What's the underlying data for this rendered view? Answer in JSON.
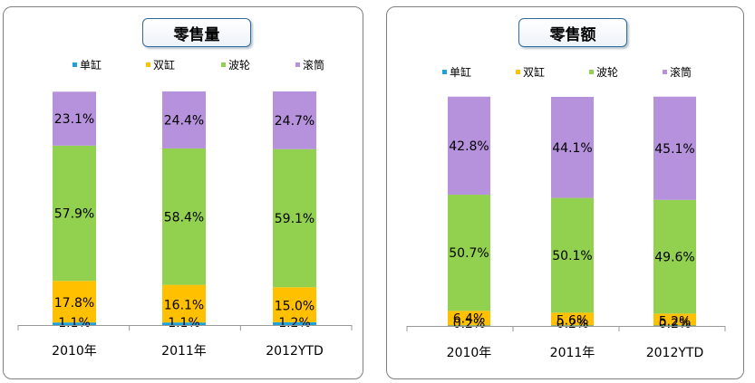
{
  "colors": {
    "single": "#1fa2d8",
    "double": "#ffc000",
    "wave": "#92d050",
    "roller": "#b592db"
  },
  "legend": [
    "单缸",
    "双缸",
    "波轮",
    "滚筒"
  ],
  "chart_data": [
    {
      "type": "bar",
      "stacked": true,
      "title": "零售量",
      "categories": [
        "2010年",
        "2011年",
        "2012YTD"
      ],
      "series": [
        {
          "name": "单缸",
          "values": [
            1.1,
            1.1,
            1.2
          ],
          "labels": [
            "1.1%",
            "1.1%",
            "1.2%"
          ]
        },
        {
          "name": "双缸",
          "values": [
            17.8,
            16.1,
            15.0
          ],
          "labels": [
            "17.8%",
            "16.1%",
            "15.0%"
          ]
        },
        {
          "name": "波轮",
          "values": [
            57.9,
            58.4,
            59.1
          ],
          "labels": [
            "57.9%",
            "58.4%",
            "59.1%"
          ]
        },
        {
          "name": "滚筒",
          "values": [
            23.1,
            24.4,
            24.7
          ],
          "labels": [
            "23.1%",
            "24.4%",
            "24.7%"
          ]
        }
      ],
      "ylim": [
        0,
        100
      ],
      "grid": false,
      "legend_position": "top"
    },
    {
      "type": "bar",
      "stacked": true,
      "title": "零售额",
      "categories": [
        "2010年",
        "2011年",
        "2012YTD"
      ],
      "series": [
        {
          "name": "单缸",
          "values": [
            0.2,
            0.2,
            0.2
          ],
          "labels": [
            "0.2%",
            "0.2%",
            "0.2%"
          ]
        },
        {
          "name": "双缸",
          "values": [
            6.4,
            5.6,
            5.2
          ],
          "labels": [
            "6.4%",
            "5.6%",
            "5.2%"
          ]
        },
        {
          "name": "波轮",
          "values": [
            50.7,
            50.1,
            49.6
          ],
          "labels": [
            "50.7%",
            "50.1%",
            "49.6%"
          ]
        },
        {
          "name": "滚筒",
          "values": [
            42.8,
            44.1,
            45.1
          ],
          "labels": [
            "42.8%",
            "44.1%",
            "45.1%"
          ]
        }
      ],
      "ylim": [
        0,
        100
      ],
      "grid": false,
      "legend_position": "top"
    }
  ]
}
